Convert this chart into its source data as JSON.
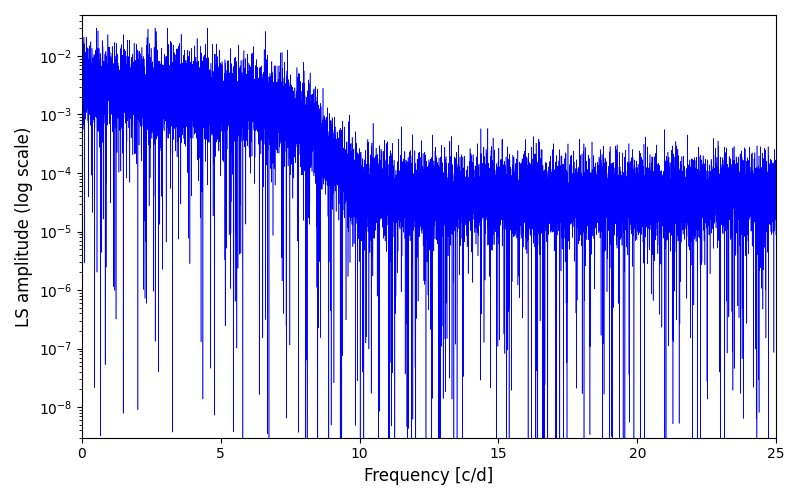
{
  "title": "",
  "xlabel": "Frequency [c/d]",
  "ylabel": "LS amplitude (log scale)",
  "xlim": [
    0,
    25
  ],
  "ylim": [
    3e-09,
    0.05
  ],
  "line_color": "#0000ff",
  "line_width": 0.4,
  "background_color": "#ffffff",
  "figsize": [
    8.0,
    5.0
  ],
  "dpi": 100,
  "freq_max": 25.0,
  "n_points": 15000,
  "seed": 7
}
